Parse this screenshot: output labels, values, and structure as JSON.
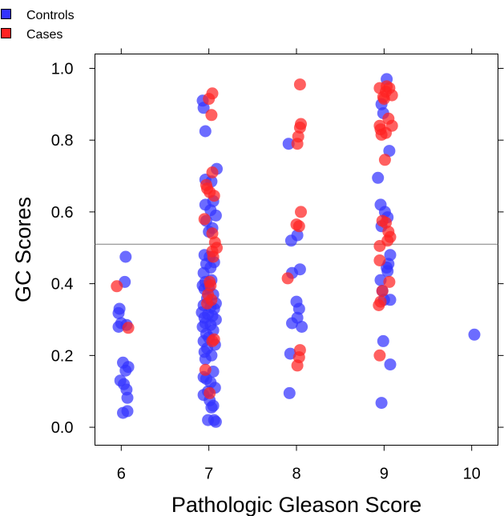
{
  "chart_data": {
    "type": "scatter",
    "title": "",
    "xlabel": "Pathologic Gleason Score",
    "ylabel": "GC Scores",
    "xlim": [
      5.7,
      10.3
    ],
    "ylim": [
      -0.05,
      1.04
    ],
    "xticks": [
      6,
      7,
      8,
      9,
      10
    ],
    "yticks": [
      0.0,
      0.2,
      0.4,
      0.6,
      0.8,
      1.0
    ],
    "ytick_labels": [
      "0.0",
      "0.2",
      "0.4",
      "0.6",
      "0.8",
      "1.0"
    ],
    "reference_line_y": 0.51,
    "legend_position": "top-left",
    "grid": false,
    "series": [
      {
        "name": "Controls",
        "color": "#3333ff",
        "points": [
          [
            6.05,
            0.475
          ],
          [
            6.04,
            0.405
          ],
          [
            5.98,
            0.33
          ],
          [
            5.97,
            0.318
          ],
          [
            6.0,
            0.29
          ],
          [
            6.06,
            0.285
          ],
          [
            5.97,
            0.28
          ],
          [
            6.02,
            0.18
          ],
          [
            6.08,
            0.168
          ],
          [
            6.05,
            0.158
          ],
          [
            5.99,
            0.13
          ],
          [
            6.03,
            0.12
          ],
          [
            6.06,
            0.105
          ],
          [
            6.07,
            0.082
          ],
          [
            6.07,
            0.045
          ],
          [
            6.02,
            0.04
          ],
          [
            6.93,
            0.91
          ],
          [
            6.94,
            0.89
          ],
          [
            6.96,
            0.825
          ],
          [
            6.96,
            0.69
          ],
          [
            7.03,
            0.685
          ],
          [
            7.09,
            0.72
          ],
          [
            6.96,
            0.62
          ],
          [
            7.05,
            0.63
          ],
          [
            7.02,
            0.605
          ],
          [
            7.08,
            0.59
          ],
          [
            6.97,
            0.575
          ],
          [
            7.04,
            0.555
          ],
          [
            7.0,
            0.545
          ],
          [
            6.95,
            0.48
          ],
          [
            7.01,
            0.475
          ],
          [
            7.06,
            0.46
          ],
          [
            6.97,
            0.455
          ],
          [
            7.02,
            0.445
          ],
          [
            6.94,
            0.43
          ],
          [
            7.03,
            0.41
          ],
          [
            6.96,
            0.405
          ],
          [
            6.93,
            0.395
          ],
          [
            7.0,
            0.39
          ],
          [
            6.95,
            0.385
          ],
          [
            7.05,
            0.37
          ],
          [
            6.98,
            0.36
          ],
          [
            7.08,
            0.345
          ],
          [
            6.94,
            0.34
          ],
          [
            7.02,
            0.335
          ],
          [
            7.06,
            0.33
          ],
          [
            6.92,
            0.32
          ],
          [
            6.99,
            0.315
          ],
          [
            7.04,
            0.31
          ],
          [
            6.95,
            0.305
          ],
          [
            7.08,
            0.3
          ],
          [
            6.96,
            0.29
          ],
          [
            7.02,
            0.285
          ],
          [
            6.93,
            0.28
          ],
          [
            7.05,
            0.27
          ],
          [
            6.97,
            0.26
          ],
          [
            7.0,
            0.25
          ],
          [
            6.94,
            0.24
          ],
          [
            7.07,
            0.23
          ],
          [
            6.98,
            0.22
          ],
          [
            6.95,
            0.21
          ],
          [
            7.03,
            0.2
          ],
          [
            6.96,
            0.19
          ],
          [
            7.05,
            0.155
          ],
          [
            6.94,
            0.14
          ],
          [
            6.97,
            0.135
          ],
          [
            7.02,
            0.125
          ],
          [
            7.07,
            0.11
          ],
          [
            6.99,
            0.1
          ],
          [
            6.94,
            0.09
          ],
          [
            7.01,
            0.075
          ],
          [
            7.05,
            0.06
          ],
          [
            7.03,
            0.055
          ],
          [
            6.99,
            0.02
          ],
          [
            7.06,
            0.02
          ],
          [
            7.08,
            0.015
          ],
          [
            7.91,
            0.79
          ],
          [
            7.94,
            0.52
          ],
          [
            8.01,
            0.535
          ],
          [
            7.95,
            0.43
          ],
          [
            8.04,
            0.44
          ],
          [
            8.0,
            0.35
          ],
          [
            8.03,
            0.33
          ],
          [
            7.95,
            0.29
          ],
          [
            8.06,
            0.28
          ],
          [
            8.01,
            0.305
          ],
          [
            7.93,
            0.205
          ],
          [
            7.92,
            0.095
          ],
          [
            9.03,
            0.97
          ],
          [
            8.97,
            0.9
          ],
          [
            8.99,
            0.875
          ],
          [
            9.06,
            0.77
          ],
          [
            8.93,
            0.695
          ],
          [
            8.96,
            0.62
          ],
          [
            9.01,
            0.6
          ],
          [
            9.04,
            0.585
          ],
          [
            8.97,
            0.56
          ],
          [
            9.07,
            0.48
          ],
          [
            9.05,
            0.455
          ],
          [
            9.03,
            0.445
          ],
          [
            9.04,
            0.435
          ],
          [
            8.96,
            0.41
          ],
          [
            8.98,
            0.38
          ],
          [
            9.0,
            0.355
          ],
          [
            9.07,
            0.355
          ],
          [
            8.99,
            0.24
          ],
          [
            9.07,
            0.175
          ],
          [
            8.97,
            0.068
          ],
          [
            10.03,
            0.258
          ]
        ]
      },
      {
        "name": "Cases",
        "color": "#ff2222",
        "points": [
          [
            5.95,
            0.393
          ],
          [
            6.08,
            0.277
          ],
          [
            7.04,
            0.93
          ],
          [
            7.0,
            0.915
          ],
          [
            7.03,
            0.87
          ],
          [
            6.97,
            0.675
          ],
          [
            6.98,
            0.665
          ],
          [
            7.01,
            0.655
          ],
          [
            7.04,
            0.71
          ],
          [
            7.06,
            0.645
          ],
          [
            6.95,
            0.58
          ],
          [
            7.04,
            0.54
          ],
          [
            7.07,
            0.515
          ],
          [
            7.09,
            0.5
          ],
          [
            7.04,
            0.49
          ],
          [
            7.05,
            0.475
          ],
          [
            7.01,
            0.405
          ],
          [
            7.02,
            0.395
          ],
          [
            6.99,
            0.37
          ],
          [
            7.03,
            0.355
          ],
          [
            6.98,
            0.345
          ],
          [
            7.06,
            0.245
          ],
          [
            7.04,
            0.24
          ],
          [
            6.96,
            0.16
          ],
          [
            7.01,
            0.095
          ],
          [
            8.04,
            0.955
          ],
          [
            8.05,
            0.845
          ],
          [
            8.04,
            0.835
          ],
          [
            8.02,
            0.81
          ],
          [
            8.01,
            0.79
          ],
          [
            8.05,
            0.6
          ],
          [
            8.0,
            0.565
          ],
          [
            8.03,
            0.56
          ],
          [
            7.9,
            0.415
          ],
          [
            8.04,
            0.215
          ],
          [
            8.03,
            0.195
          ],
          [
            8.01,
            0.172
          ],
          [
            8.95,
            0.945
          ],
          [
            9.03,
            0.95
          ],
          [
            9.06,
            0.945
          ],
          [
            9.02,
            0.935
          ],
          [
            9.09,
            0.925
          ],
          [
            8.99,
            0.92
          ],
          [
            9.0,
            0.915
          ],
          [
            9.05,
            0.86
          ],
          [
            9.09,
            0.84
          ],
          [
            8.95,
            0.84
          ],
          [
            8.96,
            0.83
          ],
          [
            9.02,
            0.82
          ],
          [
            8.97,
            0.815
          ],
          [
            9.01,
            0.745
          ],
          [
            8.98,
            0.575
          ],
          [
            9.02,
            0.57
          ],
          [
            9.05,
            0.545
          ],
          [
            9.07,
            0.53
          ],
          [
            9.04,
            0.52
          ],
          [
            8.95,
            0.505
          ],
          [
            8.95,
            0.465
          ],
          [
            9.06,
            0.405
          ],
          [
            8.98,
            0.38
          ],
          [
            8.94,
            0.34
          ],
          [
            8.96,
            0.35
          ],
          [
            8.95,
            0.2
          ]
        ]
      }
    ]
  }
}
